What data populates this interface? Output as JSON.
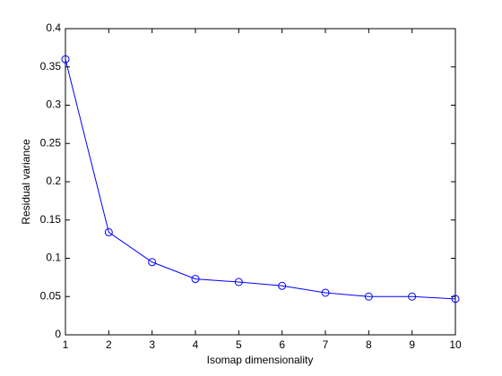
{
  "chart_data": {
    "type": "line",
    "xlabel": "Isomap dimensionality",
    "ylabel": "Residual variance",
    "x": [
      1,
      2,
      3,
      4,
      5,
      6,
      7,
      8,
      9,
      10
    ],
    "series": [
      {
        "color": "#0000ff",
        "values": [
          0.36,
          0.134,
          0.095,
          0.073,
          0.069,
          0.064,
          0.055,
          0.05,
          0.05,
          0.047
        ]
      }
    ],
    "xlim": [
      1,
      10
    ],
    "xticks": [
      1,
      2,
      3,
      4,
      5,
      6,
      7,
      8,
      9,
      10
    ],
    "ylim": [
      0,
      0.4
    ],
    "yticks": [
      0,
      0.05,
      0.1,
      0.15,
      0.2,
      0.25,
      0.3,
      0.35,
      0.4
    ],
    "marker": "circle",
    "grid": false
  }
}
